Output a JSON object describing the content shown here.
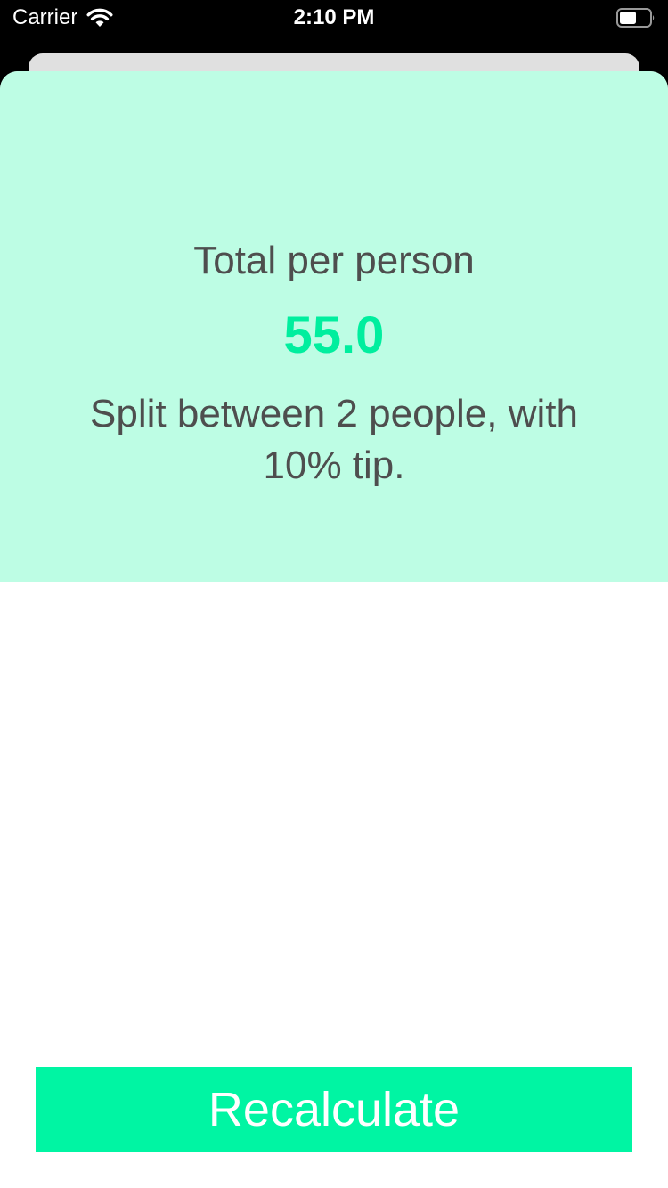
{
  "status_bar": {
    "carrier": "Carrier",
    "time": "2:10 PM",
    "wifi_icon": "wifi-icon",
    "battery_icon": "battery-icon"
  },
  "result": {
    "label": "Total per person",
    "value": "55.0",
    "split_text": "Split between 2 people, with 10% tip."
  },
  "actions": {
    "recalculate_label": "Recalculate"
  },
  "colors": {
    "panel_background": "#bdfde4",
    "accent": "#00ee9e",
    "button_background": "#00f5a3",
    "text": "#4e4e4e"
  }
}
